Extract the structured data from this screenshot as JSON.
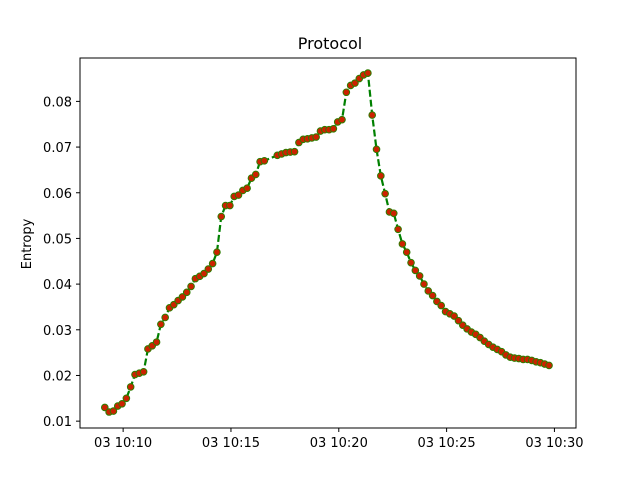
{
  "chart_data": {
    "type": "line",
    "title": "Protocol",
    "xlabel": "",
    "ylabel": "Entropy",
    "x_unit": "minutes after 10:00 on day 03",
    "xlim": [
      8.0,
      31.0
    ],
    "ylim": [
      0.0085,
      0.0895
    ],
    "x_ticks": [
      {
        "value": 10,
        "label": "03 10:10"
      },
      {
        "value": 15,
        "label": "03 10:15"
      },
      {
        "value": 20,
        "label": "03 10:20"
      },
      {
        "value": 25,
        "label": "03 10:25"
      },
      {
        "value": 30,
        "label": "03 10:30"
      }
    ],
    "y_ticks": [
      {
        "value": 0.01,
        "label": "0.01"
      },
      {
        "value": 0.02,
        "label": "0.02"
      },
      {
        "value": 0.03,
        "label": "0.03"
      },
      {
        "value": 0.04,
        "label": "0.04"
      },
      {
        "value": 0.05,
        "label": "0.05"
      },
      {
        "value": 0.06,
        "label": "0.06"
      },
      {
        "value": 0.07,
        "label": "0.07"
      },
      {
        "value": 0.08,
        "label": "0.08"
      }
    ],
    "grid": false,
    "line_color": "#008000",
    "line_style": "dashed",
    "marker_color": "#cc2200",
    "marker_edge_color": "#2e7d00",
    "series": [
      {
        "x": [
          9.15,
          9.35,
          9.55,
          9.75,
          9.95,
          10.15,
          10.35,
          10.55,
          10.75,
          10.95,
          11.15,
          11.35,
          11.55,
          11.75,
          11.95,
          12.15,
          12.35,
          12.55,
          12.75,
          12.95,
          13.15,
          13.35,
          13.55,
          13.75,
          13.95,
          14.15,
          14.35,
          14.55,
          14.75,
          14.95,
          15.15,
          15.35,
          15.55,
          15.75,
          15.95,
          16.15,
          16.35,
          16.55,
          17.15,
          17.35,
          17.55,
          17.75,
          17.95,
          18.15,
          18.35,
          18.55,
          18.75,
          18.95,
          19.15,
          19.35,
          19.55,
          19.75,
          19.95,
          20.15,
          20.35,
          20.55,
          20.75,
          20.95,
          21.15,
          21.35,
          21.55,
          21.75,
          21.95,
          22.15,
          22.35,
          22.55,
          22.75,
          22.95,
          23.15,
          23.35,
          23.55,
          23.75,
          23.95,
          24.15,
          24.35,
          24.55,
          24.75,
          24.95,
          25.15,
          25.35,
          25.55,
          25.75,
          25.95,
          26.15,
          26.35,
          26.55,
          26.75,
          26.95,
          27.15,
          27.35,
          27.55,
          27.75,
          27.95,
          28.15,
          28.35,
          28.55,
          28.75,
          28.95,
          29.15,
          29.35,
          29.55,
          29.75
        ],
        "y": [
          0.013,
          0.012,
          0.0122,
          0.0133,
          0.0138,
          0.015,
          0.0175,
          0.0202,
          0.0205,
          0.0208,
          0.0258,
          0.0265,
          0.0273,
          0.0312,
          0.0327,
          0.0348,
          0.0355,
          0.0364,
          0.0372,
          0.0382,
          0.0395,
          0.0412,
          0.0417,
          0.0423,
          0.0433,
          0.0445,
          0.047,
          0.0548,
          0.0572,
          0.0572,
          0.0592,
          0.0595,
          0.0605,
          0.061,
          0.0632,
          0.064,
          0.0668,
          0.067,
          0.0682,
          0.0685,
          0.0688,
          0.0689,
          0.069,
          0.071,
          0.0717,
          0.0718,
          0.072,
          0.0722,
          0.0735,
          0.0738,
          0.0738,
          0.074,
          0.0755,
          0.076,
          0.082,
          0.0835,
          0.084,
          0.085,
          0.0858,
          0.0862,
          0.077,
          0.0695,
          0.0637,
          0.0598,
          0.0558,
          0.0555,
          0.052,
          0.0488,
          0.047,
          0.0447,
          0.043,
          0.0418,
          0.04,
          0.0385,
          0.0375,
          0.0362,
          0.0353,
          0.034,
          0.0335,
          0.033,
          0.032,
          0.031,
          0.0302,
          0.0295,
          0.029,
          0.0283,
          0.0275,
          0.0268,
          0.0262,
          0.0257,
          0.0252,
          0.0245,
          0.024,
          0.0238,
          0.0237,
          0.0235,
          0.0235,
          0.0233,
          0.023,
          0.0228,
          0.0225,
          0.0222
        ]
      }
    ]
  }
}
